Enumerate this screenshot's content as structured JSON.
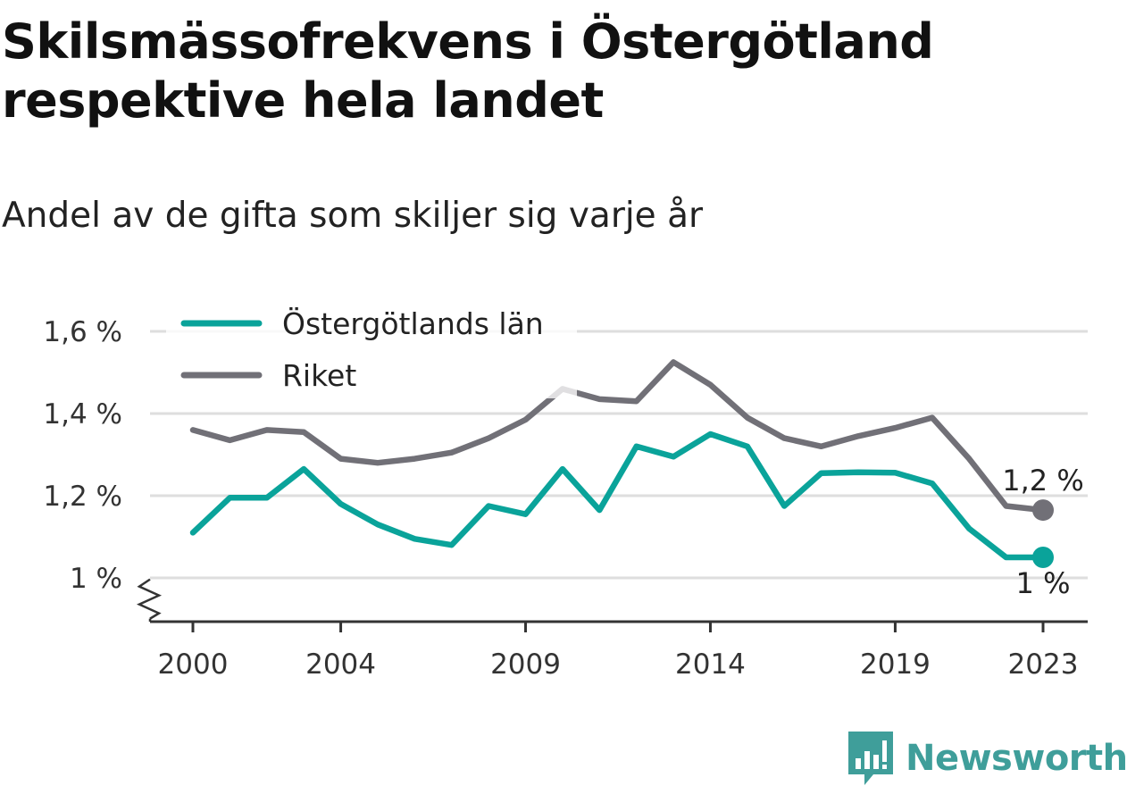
{
  "header": {
    "title": "Skilsmässofrekvens i Östergötland respektive hela landet",
    "subtitle": "Andel av de gifta som skiljer sig varje år"
  },
  "brand": {
    "name": "Newsworthy",
    "icon": "newsworthy-logo-icon",
    "color": "#3f9e9a"
  },
  "chart_data": {
    "type": "line",
    "title": "Skilsmässofrekvens i Östergötland respektive hela landet",
    "subtitle": "Andel av de gifta som skiljer sig varje år",
    "xlabel": "",
    "ylabel": "",
    "x": [
      2000,
      2001,
      2002,
      2003,
      2004,
      2005,
      2006,
      2007,
      2008,
      2009,
      2010,
      2011,
      2012,
      2013,
      2014,
      2015,
      2016,
      2017,
      2018,
      2019,
      2020,
      2021,
      2022,
      2023
    ],
    "x_ticks": [
      2000,
      2004,
      2009,
      2014,
      2019,
      2023
    ],
    "x_tick_labels": [
      "2000",
      "2004",
      "2009",
      "2014",
      "2019",
      "2023"
    ],
    "ylim": [
      0.9,
      1.6
    ],
    "y_ticks": [
      1.0,
      1.2,
      1.4,
      1.6
    ],
    "y_tick_labels": [
      "1 %",
      "1,2 %",
      "1,4 %",
      "1,6 %"
    ],
    "y_axis_break": true,
    "grid": true,
    "legend_position": "top-left",
    "series": [
      {
        "name": "Östergötlands län",
        "color": "#0aa39a",
        "values": [
          1.11,
          1.195,
          1.195,
          1.265,
          1.18,
          1.13,
          1.095,
          1.08,
          1.175,
          1.155,
          1.265,
          1.165,
          1.32,
          1.295,
          1.35,
          1.32,
          1.175,
          1.255,
          1.257,
          1.256,
          1.23,
          1.12,
          1.05,
          1.05
        ],
        "end_label": "1 %"
      },
      {
        "name": "Riket",
        "color": "#717077",
        "values": [
          1.36,
          1.335,
          1.36,
          1.355,
          1.29,
          1.28,
          1.29,
          1.305,
          1.34,
          1.385,
          1.46,
          1.435,
          1.43,
          1.525,
          1.47,
          1.39,
          1.34,
          1.32,
          1.345,
          1.365,
          1.39,
          1.29,
          1.175,
          1.165
        ],
        "end_label": "1,2 %"
      }
    ]
  }
}
